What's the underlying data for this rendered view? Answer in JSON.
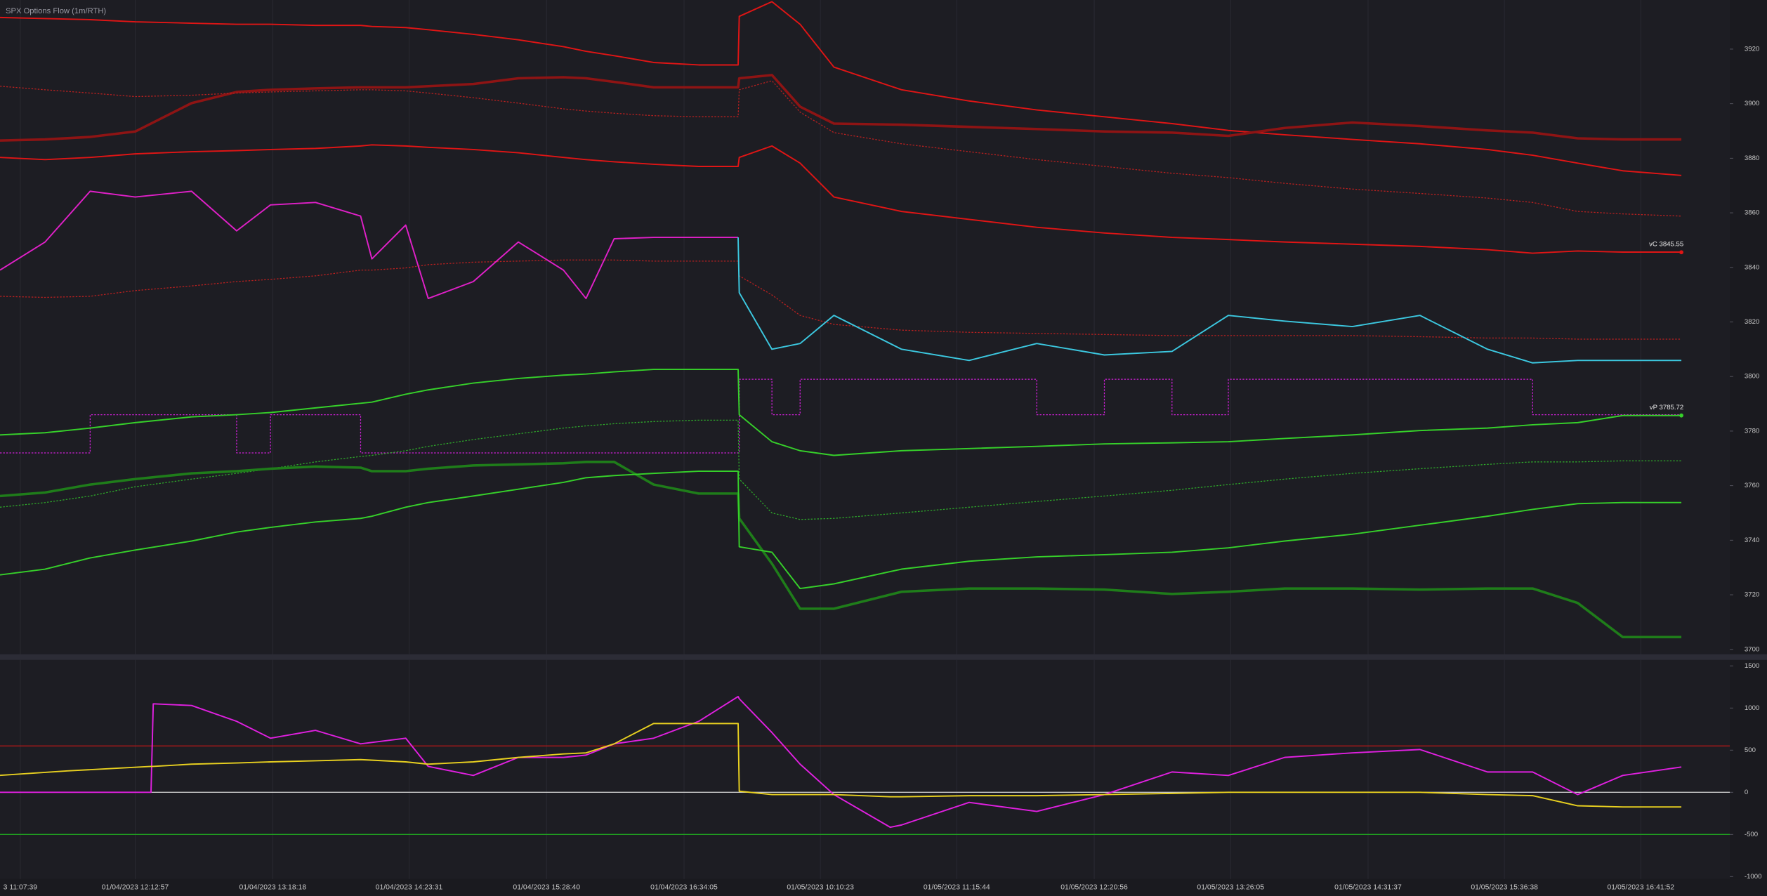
{
  "chart_data": [
    {
      "type": "line",
      "title": "SPX Options Flow (1m/RTH)",
      "x": [
        0,
        40,
        80,
        120,
        170,
        210,
        240,
        280,
        320,
        330,
        360,
        380,
        420,
        460,
        500,
        520,
        545,
        580,
        620,
        655,
        656,
        685,
        710,
        740,
        800,
        860,
        920,
        980,
        1040,
        1090,
        1140,
        1200,
        1260,
        1320,
        1360,
        1400,
        1440,
        1492
      ],
      "xlim": [
        0,
        1535
      ],
      "ylim": [
        3698,
        3938
      ],
      "yticks": [
        3700,
        3720,
        3740,
        3760,
        3780,
        3800,
        3820,
        3840,
        3860,
        3880,
        3900,
        3920
      ],
      "series": [
        {
          "color": "#e01515",
          "style": "solid",
          "values": [
            3931.6,
            3931.2,
            3930.8,
            3930,
            3929.5,
            3929.1,
            3929.1,
            3928.7,
            3928.7,
            3928.3,
            3927.9,
            3927.1,
            3925.4,
            3923.4,
            3920.9,
            3919.2,
            3917.6,
            3915.1,
            3914.2,
            3914.2,
            3932,
            3937.4,
            3929.1,
            3913.4,
            3905.1,
            3901,
            3897.7,
            3895.2,
            3892.7,
            3890.2,
            3888.6,
            3886.9,
            3885.3,
            3883.2,
            3881.1,
            3878.2,
            3875.4,
            3873.7
          ]
        },
        {
          "color": "#8e1414",
          "style": "thick",
          "values": [
            3886.5,
            3886.9,
            3887.8,
            3889.8,
            3900.2,
            3904.3,
            3905.1,
            3905.6,
            3906,
            3906,
            3906,
            3906.4,
            3907.2,
            3909.3,
            3909.7,
            3909.3,
            3908,
            3906,
            3906,
            3906,
            3909.3,
            3910.5,
            3898.9,
            3892.7,
            3892.3,
            3891.5,
            3890.7,
            3889.8,
            3889.4,
            3888.2,
            3891.1,
            3893.1,
            3891.8,
            3890.2,
            3889.4,
            3887.3,
            3886.9,
            3886.9
          ]
        },
        {
          "color": "#b82020",
          "style": "dotted",
          "values": [
            3906.4,
            3905.1,
            3903.9,
            3902.6,
            3903.1,
            3903.9,
            3904.3,
            3904.7,
            3905.1,
            3905.1,
            3904.7,
            3903.9,
            3902.2,
            3900.2,
            3898.1,
            3897.3,
            3896.5,
            3895.6,
            3895.2,
            3895.2,
            3905.1,
            3908.4,
            3896.9,
            3889.4,
            3885.3,
            3882.4,
            3879.5,
            3877,
            3874.5,
            3872.9,
            3870.8,
            3868.7,
            3867.1,
            3865.4,
            3863.8,
            3860.5,
            3859.6,
            3858.8
          ]
        },
        {
          "color": "#e01515",
          "style": "solid",
          "values": [
            3880.3,
            3879.5,
            3880.3,
            3881.6,
            3882.4,
            3882.8,
            3883.2,
            3883.6,
            3884.5,
            3884.9,
            3884.5,
            3884,
            3883.2,
            3882,
            3880.3,
            3879.5,
            3878.7,
            3877.8,
            3877,
            3877,
            3880.3,
            3884.5,
            3878.2,
            3865.8,
            3860.5,
            3857.6,
            3854.7,
            3852.6,
            3851,
            3850.2,
            3849.3,
            3848.5,
            3847.7,
            3846.5,
            3845.2,
            3846,
            3845.6,
            3845.6
          ]
        },
        {
          "color": "#b82020",
          "style": "dotted",
          "values": [
            3829.4,
            3829,
            3829.4,
            3831.5,
            3833.2,
            3834.8,
            3835.6,
            3836.9,
            3839,
            3839,
            3839.8,
            3841,
            3841.9,
            3842.3,
            3842.7,
            3842.7,
            3842.7,
            3842.3,
            3842.3,
            3842.3,
            3836.9,
            3829.9,
            3822.4,
            3819.1,
            3817,
            3816.2,
            3815.8,
            3815.4,
            3815,
            3815,
            3815,
            3815,
            3814.6,
            3814.1,
            3814.1,
            3813.7,
            3813.7,
            3813.7
          ]
        },
        {
          "color": "#e020c8",
          "style": "solid",
          "values": [
            3839,
            3849.3,
            3867.9,
            3865.8,
            3867.9,
            3853.4,
            3862.9,
            3863.8,
            3858.8,
            3843.1,
            3855.5,
            3828.6,
            3834.8,
            3849.3,
            3839,
            3828.6,
            3850.5,
            3851,
            3851,
            3851,
            null,
            null,
            null,
            null,
            null,
            null,
            null,
            null,
            null,
            null,
            null,
            null,
            null,
            null,
            null,
            null,
            null,
            null
          ]
        },
        {
          "color": "#3cc8e0",
          "style": "solid",
          "values": [
            null,
            null,
            null,
            null,
            null,
            null,
            null,
            null,
            null,
            null,
            null,
            null,
            null,
            null,
            null,
            null,
            null,
            null,
            null,
            3851,
            3830.7,
            3810,
            3812.1,
            3822.4,
            3810,
            3805.9,
            3812.1,
            3807.9,
            3809.2,
            3822.4,
            3820.3,
            3818.3,
            3822.4,
            3810,
            3805,
            3805.9,
            3805.9,
            3805.9
          ]
        },
        {
          "color": "#d020d8",
          "style": "dotted",
          "step": true,
          "values": [
            3772,
            3772,
            3786,
            3786,
            3786,
            3772,
            3786,
            3786,
            3772,
            3772,
            3772,
            3772,
            3772,
            3772,
            3772,
            3772,
            3772,
            3772,
            3772,
            3772,
            3799,
            3786,
            3799,
            3799,
            3799,
            3799,
            3786,
            3799,
            3786,
            3799,
            3799,
            3799,
            3799,
            3799,
            3786,
            3786,
            3786,
            3786
          ]
        },
        {
          "color": "#36d02a",
          "style": "solid",
          "values": [
            3778.6,
            3779.4,
            3781.1,
            3783.1,
            3785.2,
            3786,
            3786.8,
            3788.5,
            3790.2,
            3790.6,
            3793.5,
            3795.1,
            3797.6,
            3799.3,
            3800.5,
            3800.9,
            3801.7,
            3802.6,
            3802.6,
            3802.6,
            3786,
            3776.1,
            3772.8,
            3771.1,
            3772.8,
            3773.6,
            3774.4,
            3775.3,
            3775.7,
            3776.1,
            3777.3,
            3778.6,
            3780.2,
            3781.1,
            3782.3,
            3783.1,
            3785.7,
            3785.7
          ]
        },
        {
          "color": "#2ea82a",
          "style": "dotted",
          "values": [
            3752.1,
            3753.8,
            3756.2,
            3759.6,
            3762.4,
            3764.5,
            3766.2,
            3768.7,
            3770.7,
            3771.1,
            3772.8,
            3774.4,
            3776.9,
            3779,
            3781.1,
            3781.9,
            3782.7,
            3783.5,
            3784,
            3784,
            3762.4,
            3750,
            3747.6,
            3748,
            3750,
            3752.1,
            3754.2,
            3756.2,
            3758.3,
            3760.4,
            3762.4,
            3764.5,
            3766.2,
            3767.8,
            3768.7,
            3768.7,
            3769.1,
            3769.1
          ]
        },
        {
          "color": "#1f7d1a",
          "style": "thick",
          "values": [
            3756.2,
            3757.5,
            3760.4,
            3762.4,
            3764.5,
            3765.3,
            3766.2,
            3767,
            3766.6,
            3765.3,
            3765.3,
            3766.2,
            3767.4,
            3767.8,
            3768.2,
            3768.7,
            3768.7,
            3760.4,
            3757.1,
            3757.1,
            3748,
            3731.4,
            3714.9,
            3714.9,
            3721.1,
            3722.3,
            3722.3,
            3721.9,
            3720.3,
            3721.1,
            3722.3,
            3722.3,
            3721.9,
            3722.3,
            3722.3,
            3717,
            3704.5,
            3704.5
          ]
        },
        {
          "color": "#36d02a",
          "style": "solid",
          "values": [
            3727.3,
            3729.4,
            3733.5,
            3736.4,
            3739.7,
            3743,
            3744.7,
            3746.7,
            3748,
            3748.8,
            3752.1,
            3753.8,
            3756.2,
            3758.7,
            3761.2,
            3762.9,
            3763.7,
            3764.5,
            3765.3,
            3765.3,
            3737.6,
            3735.6,
            3722.3,
            3724,
            3729.4,
            3732.3,
            3733.9,
            3734.7,
            3735.6,
            3737.2,
            3739.7,
            3742.2,
            3745.5,
            3748.8,
            3751.3,
            3753.4,
            3753.8,
            3753.8
          ]
        }
      ],
      "annotations": [
        {
          "text": "vC 3845.55",
          "x": 1492,
          "y": 3845.55,
          "color": "#e01515"
        },
        {
          "text": "vP 3785.72",
          "x": 1492,
          "y": 3785.72,
          "color": "#36d02a"
        }
      ]
    },
    {
      "type": "line",
      "x": [
        0,
        60,
        134,
        136,
        170,
        210,
        240,
        280,
        320,
        360,
        380,
        420,
        460,
        500,
        520,
        545,
        580,
        620,
        655,
        656,
        685,
        710,
        740,
        790,
        800,
        860,
        920,
        980,
        1040,
        1090,
        1140,
        1200,
        1260,
        1320,
        1360,
        1400,
        1440,
        1492
      ],
      "xlim": [
        0,
        1535
      ],
      "xticks": [
        {
          "value": 18,
          "label": "3 11:07:39"
        },
        {
          "value": 120,
          "label": "01/04/2023 12:12:57"
        },
        {
          "value": 242,
          "label": "01/04/2023 13:18:18"
        },
        {
          "value": 363,
          "label": "01/04/2023 14:23:31"
        },
        {
          "value": 485,
          "label": "01/04/2023 15:28:40"
        },
        {
          "value": 607,
          "label": "01/04/2023 16:34:05"
        },
        {
          "value": 728,
          "label": "01/05/2023 10:10:23"
        },
        {
          "value": 849,
          "label": "01/05/2023 11:15:44"
        },
        {
          "value": 971,
          "label": "01/05/2023 12:20:56"
        },
        {
          "value": 1092,
          "label": "01/05/2023 13:26:05"
        },
        {
          "value": 1214,
          "label": "01/05/2023 14:31:37"
        },
        {
          "value": 1335,
          "label": "01/05/2023 15:36:38"
        },
        {
          "value": 1456,
          "label": "01/05/2023 16:41:52"
        }
      ],
      "ylim": [
        -1030,
        1578
      ],
      "yticks": [
        1500,
        1000,
        500,
        0,
        -500,
        -1000
      ],
      "hlines": [
        {
          "value": 550,
          "color": "#b01818"
        },
        {
          "value": 0,
          "color": "#c8c8c8"
        },
        {
          "value": -500,
          "color": "#20a020"
        }
      ],
      "series": [
        {
          "color": "#e020e0",
          "style": "solid",
          "values": [
            0,
            0,
            0,
            1050,
            1030,
            842,
            642,
            735,
            575,
            642,
            307,
            200,
            414,
            414,
            441,
            575,
            642,
            842,
            1136,
            1110,
            709,
            334,
            -27,
            -415,
            -388,
            -120,
            -227,
            -27,
            241,
            200,
            414,
            468,
            508,
            241,
            241,
            -27,
            200,
            300
          ]
        },
        {
          "color": "#e8d020",
          "style": "solid",
          "values": [
            201,
            254,
            307,
            307,
            334,
            348,
            361,
            374,
            388,
            361,
            334,
            361,
            414,
            455,
            468,
            575,
            816,
            816,
            816,
            13,
            -27,
            -27,
            -27,
            -53,
            -53,
            -40,
            -40,
            -27,
            -13,
            0,
            0,
            0,
            0,
            -27,
            -40,
            -160,
            -174,
            -174
          ]
        }
      ]
    }
  ]
}
